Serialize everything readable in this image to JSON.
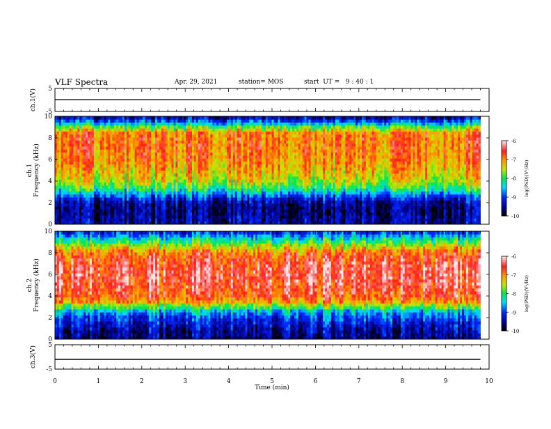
{
  "header": {
    "title": "VLF Spectra",
    "date": "Apr. 29, 2021",
    "station": "station= MOS",
    "start_ut": "start  UT =   9 : 40 : 1"
  },
  "chart_data": [
    {
      "type": "line",
      "panel": "ch1-waveform",
      "ylabel": "ch.1(V)",
      "ylim": [
        -5,
        5
      ],
      "yticks": [
        "5",
        "-5"
      ],
      "xlim": [
        0,
        10
      ],
      "series": [
        {
          "x": [
            0,
            9.8
          ],
          "values": [
            0.1,
            0.1
          ]
        }
      ]
    },
    {
      "type": "heatmap",
      "panel": "ch1-spectrogram",
      "ylabel": "ch.1\nFrequency (kHz)",
      "ylim": [
        0,
        10
      ],
      "yticks": [
        "0",
        "2",
        "4",
        "6",
        "8",
        "10"
      ],
      "xlim": [
        0,
        10
      ],
      "data_end_min": 9.8,
      "profile_freq_khz": [
        0,
        0.5,
        1.0,
        1.5,
        2.0,
        2.5,
        3.0,
        3.5,
        4.0,
        5.0,
        6.0,
        7.0,
        8.0,
        8.5,
        9.0,
        9.5,
        10.0
      ],
      "profile_log_psd": [
        -9.5,
        -9.5,
        -9.6,
        -9.6,
        -9.5,
        -9.1,
        -8.4,
        -7.9,
        -7.5,
        -7.2,
        -7.0,
        -6.9,
        -6.9,
        -7.0,
        -7.8,
        -8.8,
        -9.6
      ],
      "colorbar": {
        "label": "log(PSD)(V²/Hz)",
        "range": [
          -10,
          -6
        ],
        "ticks": [
          "-6",
          "-7",
          "-8",
          "-9",
          "-10"
        ]
      }
    },
    {
      "type": "heatmap",
      "panel": "ch2-spectrogram",
      "ylabel": "ch.2\nFrequency (kHz)",
      "ylim": [
        0,
        10
      ],
      "yticks": [
        "0",
        "2",
        "4",
        "6",
        "8",
        "10"
      ],
      "xlim": [
        0,
        10
      ],
      "data_end_min": 9.8,
      "profile_freq_khz": [
        0,
        0.5,
        1.0,
        1.5,
        2.0,
        2.5,
        3.0,
        3.5,
        4.0,
        5.0,
        6.0,
        7.0,
        8.0,
        8.5,
        9.0,
        9.5,
        10.0
      ],
      "profile_log_psd": [
        -9.6,
        -9.5,
        -9.4,
        -9.2,
        -9.0,
        -8.6,
        -7.8,
        -7.0,
        -6.7,
        -6.5,
        -6.4,
        -6.5,
        -6.8,
        -7.3,
        -7.9,
        -8.5,
        -9.2
      ],
      "colorbar": {
        "label": "log(PSD)(V²/Hz)",
        "range": [
          -10,
          -6
        ],
        "ticks": [
          "-6",
          "-7",
          "-8",
          "-9",
          "-10"
        ]
      }
    },
    {
      "type": "line",
      "panel": "ch3-waveform",
      "ylabel": "ch.3(V)",
      "ylim": [
        -5,
        5
      ],
      "yticks": [
        "5",
        "-5"
      ],
      "xlim": [
        0,
        10
      ],
      "xlabel": "Time (min)",
      "xticks": [
        "0",
        "1",
        "2",
        "3",
        "4",
        "5",
        "6",
        "7",
        "8",
        "9",
        "10"
      ],
      "series": [
        {
          "x": [
            0,
            9.8
          ],
          "values": [
            -1.0,
            -1.0
          ]
        }
      ]
    }
  ]
}
